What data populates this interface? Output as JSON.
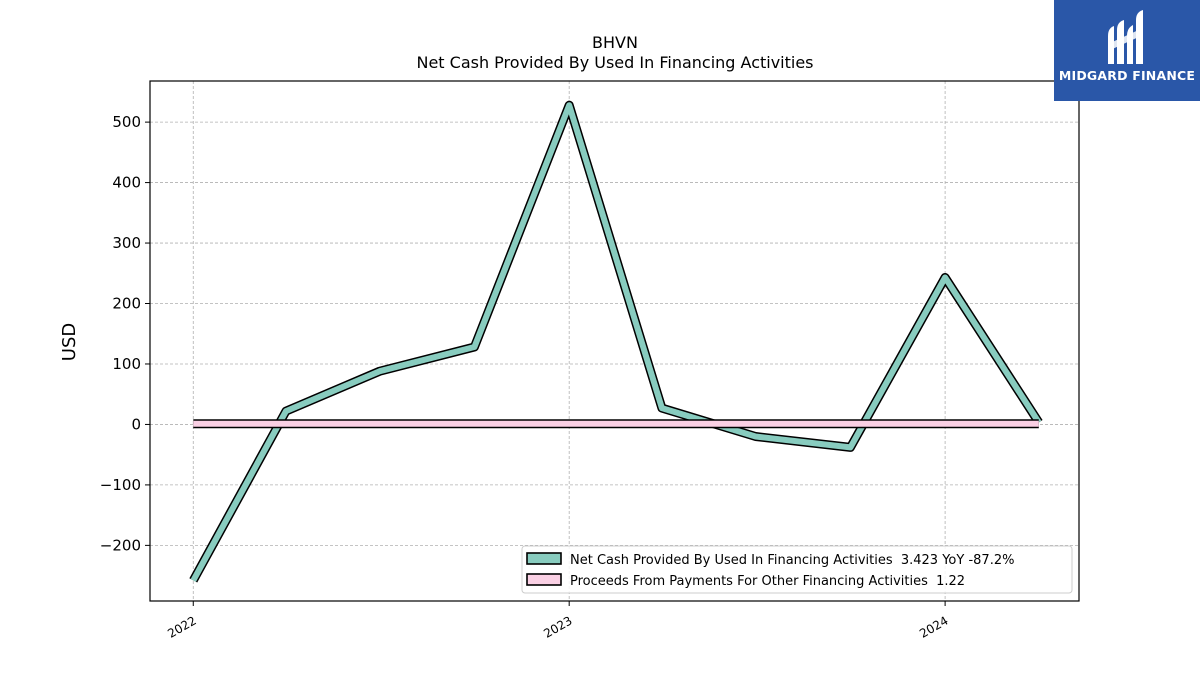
{
  "brand": {
    "name": "MIDGARD FINANCE",
    "bg_color": "#2a57a8"
  },
  "chart_data": {
    "type": "line",
    "title": "BHVN",
    "subtitle": "Net Cash Provided By Used In Financing Activities",
    "xlabel": "",
    "ylabel": "USD",
    "x_ticks": [
      "2022",
      "2023",
      "2024"
    ],
    "y_ticks": [
      -200,
      -100,
      0,
      100,
      200,
      300,
      400,
      500
    ],
    "xlim": [
      "2021-11-20",
      "2024-05-10"
    ],
    "ylim": [
      -292,
      568
    ],
    "grid": true,
    "legend_position": "lower-right",
    "series": [
      {
        "name": "Net Cash Provided By Used In Financing Activities  3.423 YoY -87.2%",
        "color": "#88ccbf",
        "x": [
          "2022-01-01",
          "2022-04-01",
          "2022-07-01",
          "2022-10-01",
          "2023-01-01",
          "2023-04-01",
          "2023-07-01",
          "2023-10-01",
          "2024-01-01",
          "2024-04-01"
        ],
        "values": [
          -258,
          22,
          88,
          128,
          528,
          27,
          -20,
          -38,
          243,
          3.423
        ]
      },
      {
        "name": "Proceeds From Payments For Other Financing Activities  1.22",
        "color": "#fad0e4",
        "x": [
          "2022-01-01",
          "2024-04-01"
        ],
        "values": [
          1.22,
          1.22
        ]
      }
    ]
  }
}
